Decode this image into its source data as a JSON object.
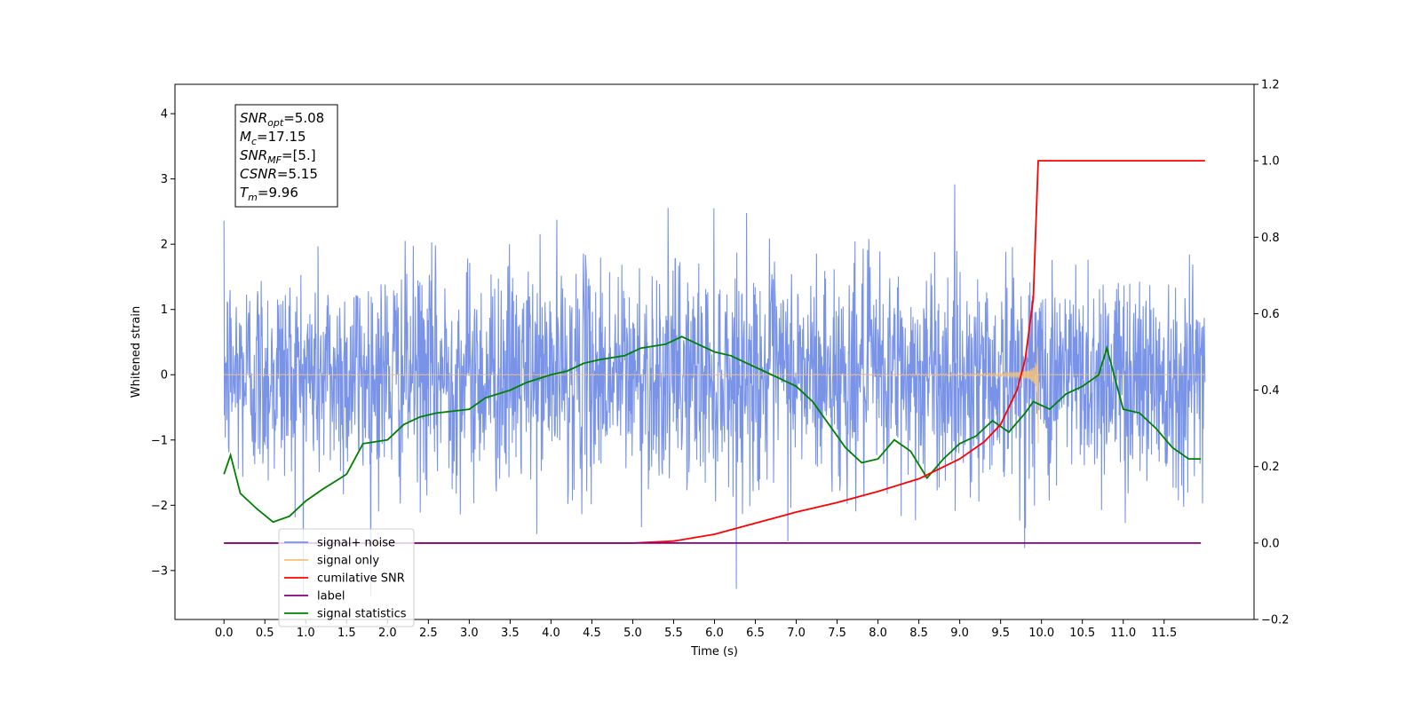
{
  "chart_data": {
    "type": "line",
    "xlabel": "Time (s)",
    "ylabel": "Whitened strain",
    "ylim_left": [
      -3.75,
      4.45
    ],
    "ylim_right": [
      -0.2,
      1.2
    ],
    "xlim": [
      -0.6,
      12.6
    ],
    "xticks": [
      "0.0",
      "0.5",
      "1.0",
      "1.5",
      "2.0",
      "2.5",
      "3.0",
      "3.5",
      "4.0",
      "4.5",
      "5.0",
      "5.5",
      "6.0",
      "6.5",
      "7.0",
      "7.5",
      "8.0",
      "8.5",
      "9.0",
      "9.5",
      "10.0",
      "10.5",
      "11.0",
      "11.5"
    ],
    "yticks_left": [
      "−3",
      "−2",
      "−1",
      "0",
      "1",
      "2",
      "3",
      "4"
    ],
    "yticks_right": [
      "−0.2",
      "0.0",
      "0.2",
      "0.4",
      "0.6",
      "0.8",
      "1.0",
      "1.2"
    ],
    "annotation": [
      {
        "main": "SNR",
        "sub": "opt",
        "rest": "=5.08"
      },
      {
        "main": "M",
        "sub": "c",
        "rest": "=17.15"
      },
      {
        "main": "SNR",
        "sub": "MF",
        "rest": "=[5.]"
      },
      {
        "main": "CSNR",
        "sub": "",
        "rest": "=5.15"
      },
      {
        "main": "T",
        "sub": "m",
        "rest": "=9.96"
      }
    ],
    "legend_position": "lower-left",
    "series": [
      {
        "name": "signal+ noise",
        "color": "#7893e8",
        "axis": "left",
        "kind": "noise",
        "t_start": 0.0,
        "t_end": 12.0,
        "std": 0.85
      },
      {
        "name": "signal only",
        "color": "#f6c37c",
        "axis": "left",
        "kind": "chirp",
        "t_start": 0.0,
        "t_end": 9.96,
        "peak": 0.87
      },
      {
        "name": "cumilative SNR",
        "color": "#ff0000",
        "axis": "right",
        "x": [
          0,
          5.0,
          5.5,
          6.0,
          6.5,
          7.0,
          7.5,
          8.0,
          8.5,
          9.0,
          9.3,
          9.5,
          9.7,
          9.8,
          9.9,
          9.93,
          9.96,
          12.0
        ],
        "y": [
          0,
          0.0,
          0.005,
          0.023,
          0.052,
          0.081,
          0.106,
          0.135,
          0.168,
          0.22,
          0.265,
          0.31,
          0.4,
          0.48,
          0.64,
          0.82,
          1.0,
          1.0
        ]
      },
      {
        "name": "label",
        "color": "#800080",
        "axis": "right",
        "x": [
          0,
          11.95
        ],
        "y": [
          0,
          0
        ]
      },
      {
        "name": "signal statistics",
        "color": "#008000",
        "axis": "right",
        "x": [
          0.0,
          0.08,
          0.2,
          0.4,
          0.6,
          0.8,
          1.0,
          1.2,
          1.5,
          1.7,
          2.0,
          2.2,
          2.4,
          2.6,
          3.0,
          3.2,
          3.5,
          3.7,
          4.0,
          4.2,
          4.4,
          4.6,
          4.9,
          5.1,
          5.4,
          5.6,
          5.8,
          6.0,
          6.2,
          6.4,
          6.6,
          6.8,
          7.0,
          7.2,
          7.4,
          7.6,
          7.8,
          8.0,
          8.2,
          8.4,
          8.6,
          8.8,
          9.0,
          9.2,
          9.4,
          9.6,
          9.8,
          9.9,
          10.1,
          10.3,
          10.5,
          10.7,
          10.8,
          11.0,
          11.2,
          11.4,
          11.6,
          11.8,
          11.95
        ],
        "y": [
          0.18,
          0.23,
          0.13,
          0.09,
          0.055,
          0.07,
          0.11,
          0.14,
          0.18,
          0.26,
          0.27,
          0.31,
          0.33,
          0.34,
          0.35,
          0.38,
          0.4,
          0.42,
          0.44,
          0.45,
          0.47,
          0.48,
          0.49,
          0.51,
          0.52,
          0.54,
          0.52,
          0.5,
          0.49,
          0.47,
          0.45,
          0.43,
          0.41,
          0.37,
          0.31,
          0.25,
          0.21,
          0.22,
          0.27,
          0.24,
          0.17,
          0.22,
          0.26,
          0.28,
          0.32,
          0.29,
          0.34,
          0.37,
          0.35,
          0.39,
          0.41,
          0.44,
          0.51,
          0.35,
          0.34,
          0.3,
          0.25,
          0.22,
          0.22
        ]
      }
    ]
  }
}
